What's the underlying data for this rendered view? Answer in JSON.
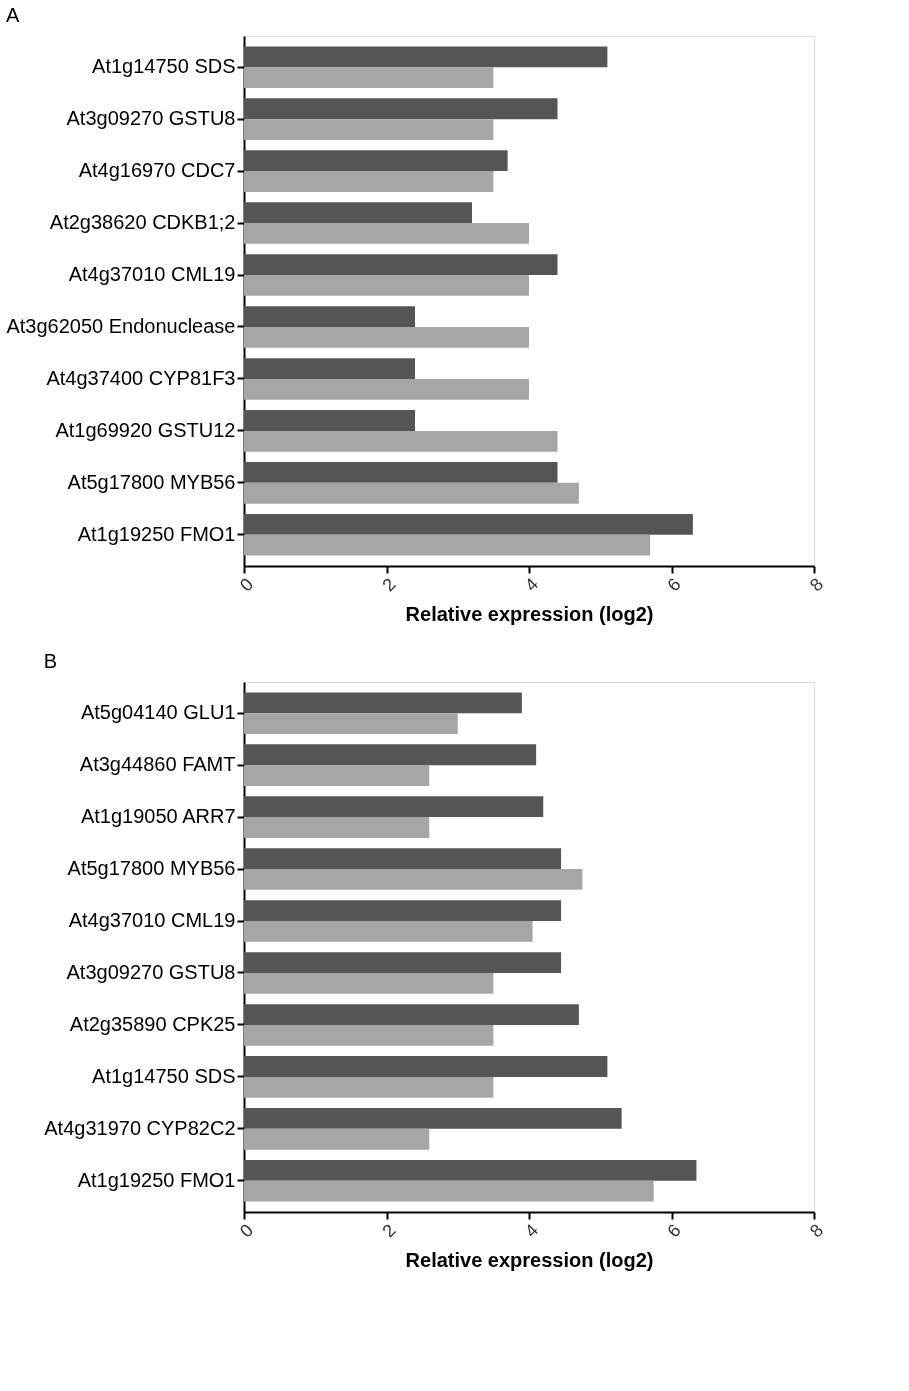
{
  "chart_data": [
    {
      "type": "bar",
      "title": "A",
      "orientation": "horizontal",
      "xlabel": "Relative expression (log2)",
      "xlim": [
        0,
        8
      ],
      "xticks": [
        0,
        2,
        4,
        6,
        8
      ],
      "grid": false,
      "legend": false,
      "categories": [
        "At1g14750 SDS",
        "At3g09270 GSTU8",
        "At4g16970 CDC7",
        "At2g38620 CDKB1;2",
        "At4g37010  CML19",
        "At3g62050 Endonuclease",
        "At4g37400 CYP81F3",
        "At1g69920 GSTU12",
        "At5g17800 MYB56",
        "At1g19250 FMO1"
      ],
      "series": [
        {
          "color": "#555555",
          "values": [
            5.1,
            4.4,
            3.7,
            3.2,
            4.4,
            2.4,
            2.4,
            2.4,
            4.4,
            6.3
          ]
        },
        {
          "color": "#a6a6a6",
          "values": [
            3.5,
            3.5,
            3.5,
            4.0,
            4.0,
            4.0,
            4.0,
            4.4,
            4.7,
            5.7
          ]
        }
      ]
    },
    {
      "type": "bar",
      "title": "B",
      "orientation": "horizontal",
      "xlabel": "Relative expression (log2)",
      "xlim": [
        0,
        8
      ],
      "xticks": [
        0,
        2,
        4,
        6,
        8
      ],
      "grid": false,
      "legend": false,
      "categories": [
        "At5g04140 GLU1",
        "At3g44860 FAMT",
        "At1g19050 ARR7",
        "At5g17800 MYB56",
        "At4g37010 CML19",
        "At3g09270 GSTU8",
        "At2g35890 CPK25",
        "At1g14750 SDS",
        "At4g31970 CYP82C2",
        "At1g19250 FMO1"
      ],
      "series": [
        {
          "color": "#555555",
          "values": [
            3.9,
            4.1,
            4.2,
            4.45,
            4.45,
            4.45,
            4.7,
            5.1,
            5.3,
            6.35
          ]
        },
        {
          "color": "#a6a6a6",
          "values": [
            3.0,
            2.6,
            2.6,
            4.75,
            4.05,
            3.5,
            3.5,
            3.5,
            2.6,
            5.75
          ]
        }
      ]
    }
  ]
}
